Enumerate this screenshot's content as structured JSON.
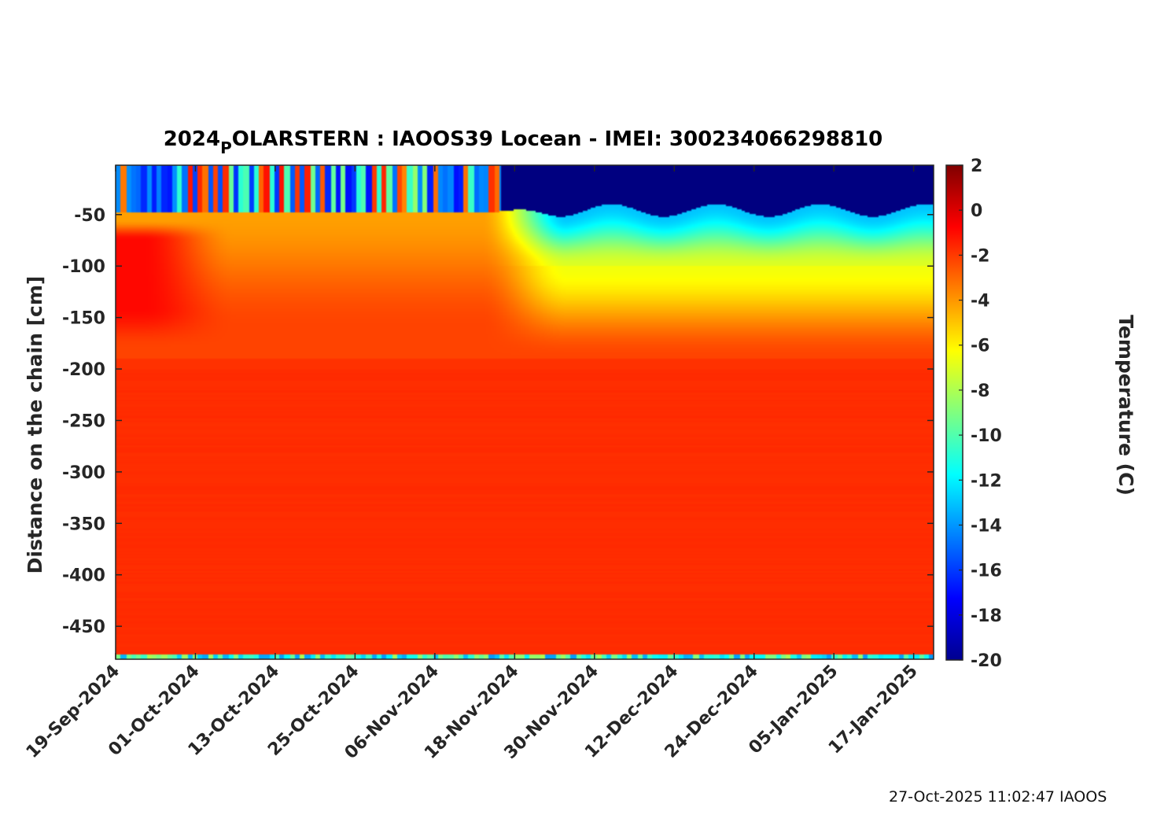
{
  "chart_data": {
    "type": "heatmap",
    "title": {
      "prefix": "2024",
      "subscript": "P",
      "suffix": "OLARSTERN : IAOOS39  Locean - IMEI: 300234066298810"
    },
    "xlabel": "",
    "ylabel": "Distance on the chain [cm]",
    "x_ticks": [
      "19-Sep-2024",
      "01-Oct-2024",
      "13-Oct-2024",
      "25-Oct-2024",
      "06-Nov-2024",
      "18-Nov-2024",
      "30-Nov-2024",
      "12-Dec-2024",
      "24-Dec-2024",
      "05-Jan-2025",
      "17-Jan-2025"
    ],
    "x_range": [
      "19-Sep-2024",
      "20-Jan-2025"
    ],
    "y_ticks": [
      -50,
      -100,
      -150,
      -200,
      -250,
      -300,
      -350,
      -400,
      -450
    ],
    "y_range": [
      -482,
      -2
    ],
    "colorbar": {
      "label": "Temperature (C)",
      "range": [
        -20,
        2
      ],
      "ticks": [
        2,
        0,
        -2,
        -4,
        -6,
        -8,
        -10,
        -12,
        -14,
        -16,
        -18,
        -20
      ],
      "colormap": "jet"
    },
    "field_summary": [
      {
        "period": "19-Sep-2024 to 15-Nov-2024",
        "depth_cm": "-2 to -50",
        "temperature_C": "-18 to 0 (alternating cold/warm episodes)"
      },
      {
        "period": "19-Sep-2024 to 15-Nov-2024",
        "depth_cm": "-50 to -150",
        "temperature_C": "-4 to -2"
      },
      {
        "period": "19-Sep-2024 to 01-Oct-2024",
        "depth_cm": "-60 to -170",
        "temperature_C": "-1"
      },
      {
        "period": "16-Nov-2024 to 20-Jan-2025",
        "depth_cm": "-2 to -45",
        "temperature_C": "-20 to -18"
      },
      {
        "period": "16-Nov-2024 to 20-Jan-2025",
        "depth_cm": "-45 to -100",
        "temperature_C": "-12 to -7"
      },
      {
        "period": "16-Nov-2024 to 20-Jan-2025",
        "depth_cm": "-100 to -190",
        "temperature_C": "-6 to -2"
      },
      {
        "period": "19-Sep-2024 to 20-Jan-2025",
        "depth_cm": "below -200",
        "temperature_C": "-1.7"
      }
    ]
  },
  "footer": "27-Oct-2025 11:02:47 IAOOS"
}
